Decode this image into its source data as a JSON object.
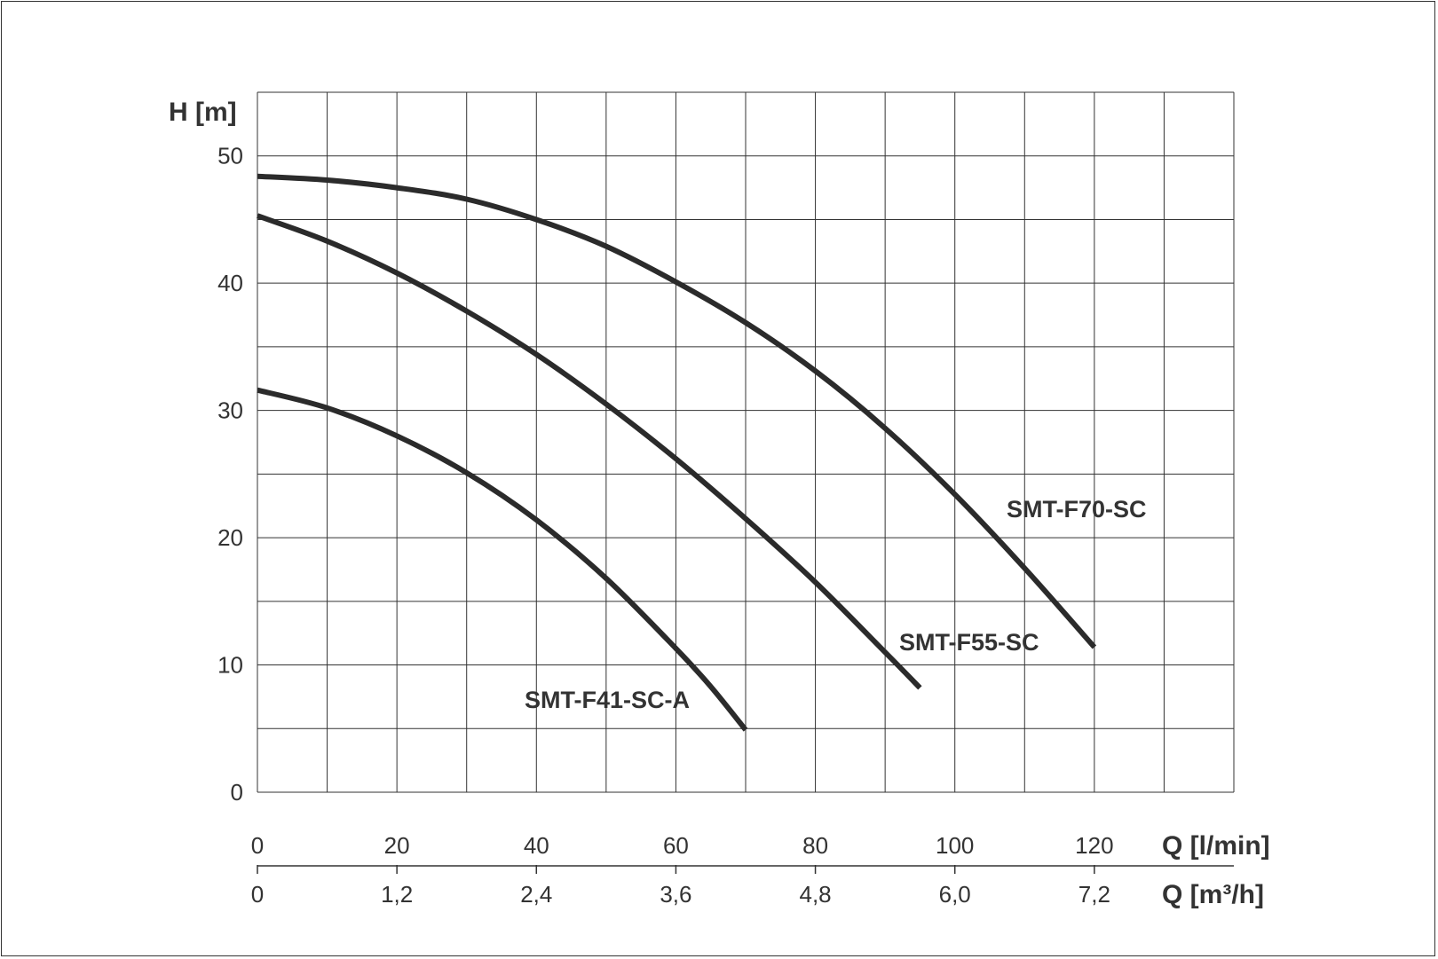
{
  "chart_data": {
    "type": "line",
    "title": "",
    "ylabel": "H [m]",
    "xlabel_primary": "Q [l/min]",
    "xlabel_secondary": "Q [m³/h]",
    "ylim": [
      0,
      55
    ],
    "xlim": [
      0,
      140
    ],
    "grid": true,
    "y_ticks": [
      {
        "value": 0,
        "label": "0"
      },
      {
        "value": 10,
        "label": "10"
      },
      {
        "value": 20,
        "label": "20"
      },
      {
        "value": 30,
        "label": "30"
      },
      {
        "value": 40,
        "label": "40"
      },
      {
        "value": 50,
        "label": "50"
      }
    ],
    "x_ticks_primary": [
      {
        "value": 0,
        "label": "0"
      },
      {
        "value": 20,
        "label": "20"
      },
      {
        "value": 40,
        "label": "40"
      },
      {
        "value": 60,
        "label": "60"
      },
      {
        "value": 80,
        "label": "80"
      },
      {
        "value": 100,
        "label": "100"
      },
      {
        "value": 120,
        "label": "120"
      }
    ],
    "x_ticks_secondary": [
      {
        "value": 0,
        "label": "0"
      },
      {
        "value": 20,
        "label": "1,2"
      },
      {
        "value": 40,
        "label": "2,4"
      },
      {
        "value": 60,
        "label": "3,6"
      },
      {
        "value": 80,
        "label": "4,8"
      },
      {
        "value": 100,
        "label": "6,0"
      },
      {
        "value": 120,
        "label": "7,2"
      }
    ],
    "series": [
      {
        "name": "SMT-F70-SC",
        "x": [
          0,
          10,
          20,
          30,
          40,
          50,
          60,
          70,
          80,
          90,
          100,
          110,
          120
        ],
        "y": [
          48.4,
          48.1,
          47.5,
          46.6,
          45.0,
          42.9,
          40.1,
          36.9,
          33.1,
          28.6,
          23.4,
          17.6,
          11.4
        ]
      },
      {
        "name": "SMT-F55-SC",
        "x": [
          0,
          10,
          20,
          30,
          40,
          50,
          60,
          70,
          80,
          90,
          95
        ],
        "y": [
          45.3,
          43.3,
          40.8,
          37.8,
          34.4,
          30.5,
          26.2,
          21.5,
          16.5,
          11.0,
          8.2
        ]
      },
      {
        "name": "SMT-F41-SC-A",
        "x": [
          0,
          10,
          20,
          30,
          40,
          50,
          60,
          65,
          70
        ],
        "y": [
          31.6,
          30.2,
          28.0,
          25.1,
          21.4,
          16.8,
          11.3,
          8.3,
          4.9
        ]
      }
    ]
  }
}
